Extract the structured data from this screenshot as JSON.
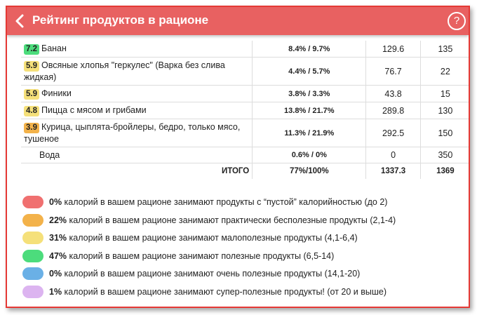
{
  "header": {
    "title": "Рейтинг продуктов в рационе",
    "help_label": "?"
  },
  "products": [
    {
      "score": "7.2",
      "score_color": "#4cdc7c",
      "name": "Банан",
      "pct": "8.4% / 9.7%",
      "value": "129.6",
      "calories": "135"
    },
    {
      "score": "5.9",
      "score_color": "#f5e07a",
      "name": "Овсяные хлопья \"геркулес\" (Варка без слива жидкая)",
      "pct": "4.4% / 5.7%",
      "value": "76.7",
      "calories": "22"
    },
    {
      "score": "5.9",
      "score_color": "#f5e07a",
      "name": "Финики",
      "pct": "3.8% / 3.3%",
      "value": "43.8",
      "calories": "15"
    },
    {
      "score": "4.8",
      "score_color": "#f5e07a",
      "name": "Пицца с мясом и грибами",
      "pct": "13.8% / 21.7%",
      "value": "289.8",
      "calories": "130"
    },
    {
      "score": "3.9",
      "score_color": "#f3b24a",
      "name": "Курица, цыплята-бройлеры, бедро, только мясо, тушеное",
      "pct": "11.3% / 21.9%",
      "value": "292.5",
      "calories": "150"
    }
  ],
  "water": {
    "name": "Вода",
    "pct": "0.6% / 0%",
    "value": "0",
    "calories": "350"
  },
  "total": {
    "label": "ИТОГО",
    "pct": "77%/100%",
    "value": "1337.3",
    "calories": "1369"
  },
  "legend": [
    {
      "color": "#f07070",
      "percent": "0%",
      "text": " калорий в вашем рационе занимают продукты с “пустой” калорийностью (до 2)"
    },
    {
      "color": "#f3b24a",
      "percent": "22%",
      "text": " калорий в вашем рационе занимают практически бесполезные продукты (2,1-4)"
    },
    {
      "color": "#f5e07a",
      "percent": "31%",
      "text": " калорий в вашем рационе занимают малополезные продукты (4,1-6,4)"
    },
    {
      "color": "#4cdc7c",
      "percent": "47%",
      "text": " калорий в вашем рационе занимают полезные продукты (6,5-14)"
    },
    {
      "color": "#6ab0e6",
      "percent": "0%",
      "text": " калорий в вашем рационе занимают очень полезные продукты (14,1-20)"
    },
    {
      "color": "#dcb4f0",
      "percent": "1%",
      "text": " калорий в вашем рационе занимают супер-полезные продукты! (от 20 и выше)"
    }
  ]
}
